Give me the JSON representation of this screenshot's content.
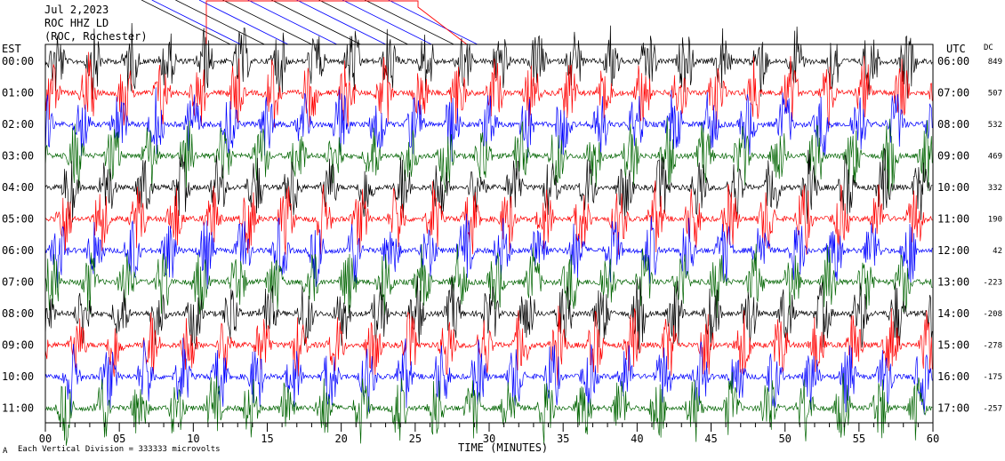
{
  "header": {
    "date": "Jul 2,2023",
    "station": "ROC HHZ LD",
    "location": "(ROC, Rochester)"
  },
  "left_axis_label": "EST",
  "right_axis_label": "UTC",
  "dc_label": "DC",
  "footnote": "Each Vertical Division =  333333 microvolts",
  "footnote_mark": "A",
  "colors": {
    "black": "#000000",
    "red": "#ff0000",
    "blue": "#0000ff",
    "green": "#006400"
  },
  "chart_data": {
    "type": "line",
    "title": "Jul 2,2023",
    "subtitle": "ROC HHZ LD (ROC, Rochester)",
    "xlabel": "TIME (MINUTES)",
    "ylabel": "",
    "xlim": [
      0,
      60
    ],
    "x_ticks": [
      "00",
      "05",
      "10",
      "15",
      "20",
      "25",
      "30",
      "35",
      "40",
      "45",
      "50",
      "55",
      "60"
    ],
    "left_tick_labels": [
      "00:00",
      "01:00",
      "02:00",
      "03:00",
      "04:00",
      "05:00",
      "06:00",
      "07:00",
      "08:00",
      "09:00",
      "10:00",
      "11:00"
    ],
    "right_tick_labels": [
      "06:00",
      "07:00",
      "08:00",
      "09:00",
      "10:00",
      "11:00",
      "12:00",
      "13:00",
      "14:00",
      "15:00",
      "16:00",
      "17:00"
    ],
    "dc_offsets": [
      849,
      507,
      532,
      469,
      332,
      190,
      42,
      -223,
      -208,
      -278,
      -175,
      -257
    ],
    "trace_colors": [
      "black",
      "red",
      "blue",
      "green",
      "black",
      "red",
      "blue",
      "green",
      "black",
      "red",
      "blue",
      "green"
    ],
    "burst_period_minutes": 2.5,
    "grid": false,
    "legend": "none"
  }
}
